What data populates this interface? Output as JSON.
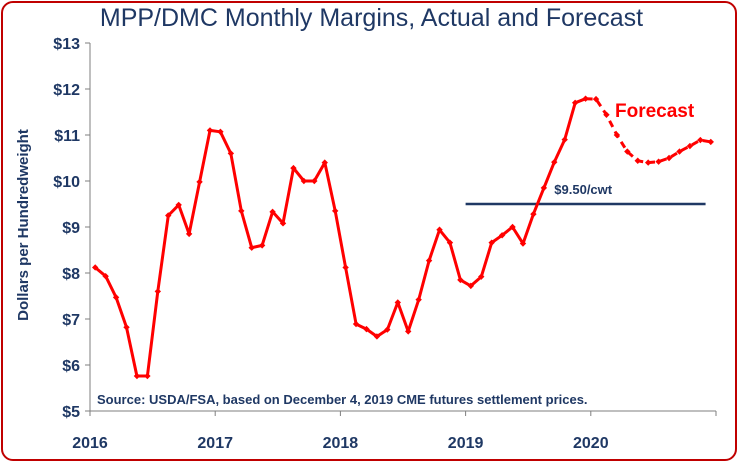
{
  "chart_data": {
    "type": "line",
    "title": "MPP/DMC Monthly Margins, Actual and Forecast",
    "ylabel": "Dollars per Hundredweight",
    "xlabel": "",
    "ylim": [
      5,
      13
    ],
    "y_ticks": [
      "$5",
      "$6",
      "$7",
      "$8",
      "$9",
      "$10",
      "$11",
      "$12",
      "$13"
    ],
    "x_ticks": [
      "2016",
      "2017",
      "2018",
      "2019",
      "2020"
    ],
    "x_start": "2016-01",
    "grid": false,
    "series": [
      {
        "style": "solid",
        "color": "#ff0000",
        "x": [
          "2016-01",
          "2016-02",
          "2016-03",
          "2016-04",
          "2016-05",
          "2016-06",
          "2016-07",
          "2016-08",
          "2016-09",
          "2016-10",
          "2016-11",
          "2016-12",
          "2017-01",
          "2017-02",
          "2017-03",
          "2017-04",
          "2017-05",
          "2017-06",
          "2017-07",
          "2017-08",
          "2017-09",
          "2017-10",
          "2017-11",
          "2017-12",
          "2018-01",
          "2018-02",
          "2018-03",
          "2018-04",
          "2018-05",
          "2018-06",
          "2018-07",
          "2018-08",
          "2018-09",
          "2018-10",
          "2018-11",
          "2018-12",
          "2019-01",
          "2019-02",
          "2019-03",
          "2019-04",
          "2019-05",
          "2019-06",
          "2019-07",
          "2019-08",
          "2019-09",
          "2019-10",
          "2019-11",
          "2019-12"
        ],
        "y": [
          8.12,
          7.93,
          7.47,
          6.82,
          5.76,
          5.76,
          7.6,
          9.25,
          9.48,
          8.85,
          9.98,
          11.1,
          11.07,
          10.6,
          9.35,
          8.55,
          8.6,
          9.33,
          9.08,
          10.28,
          10.0,
          10.0,
          10.4,
          9.35,
          8.12,
          6.89,
          6.78,
          6.62,
          6.77,
          7.36,
          6.73,
          7.42,
          8.27,
          8.94,
          8.66,
          7.85,
          7.72,
          7.92,
          8.66,
          8.82,
          9.0,
          8.64,
          9.28,
          9.85,
          10.41,
          10.9,
          11.7,
          11.79
        ]
      },
      {
        "style": "dashed",
        "color": "#ff0000",
        "x": [
          "2019-12",
          "2020-01",
          "2020-02",
          "2020-03",
          "2020-04",
          "2020-05",
          "2020-06",
          "2020-07",
          "2020-08",
          "2020-09",
          "2020-10",
          "2020-11",
          "2020-12"
        ],
        "y": [
          11.79,
          11.78,
          11.44,
          11.0,
          10.64,
          10.44,
          10.4,
          10.42,
          10.5,
          10.64,
          10.76,
          10.89,
          10.85
        ]
      }
    ],
    "reference_line": {
      "value": 9.5,
      "label": "$9.50/cwt",
      "color": "#1f3864",
      "x_from": "2019-01",
      "x_to": "2020-12"
    },
    "annotations": {
      "forecast": "Forecast",
      "source": "Source:  USDA/FSA, based on December 4, 2019 CME futures settlement prices."
    }
  }
}
